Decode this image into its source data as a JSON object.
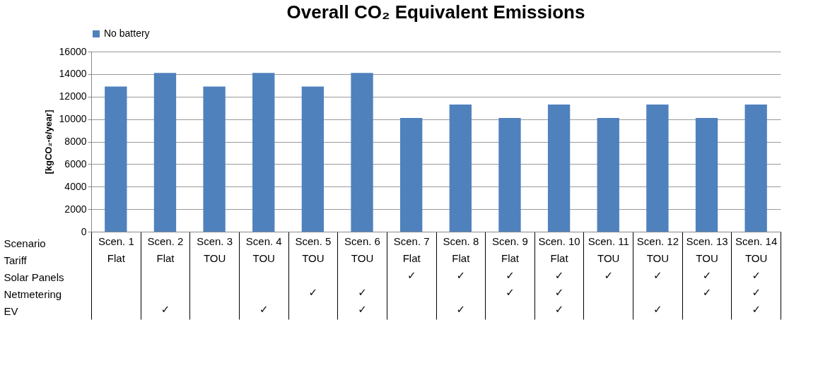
{
  "chart_data": {
    "type": "bar",
    "title": "Overall CO₂ Equivalent Emissions",
    "xlabel": "Scenario\nTariff\nSolar Panels\nNetmetering\nEV",
    "ylabel": "[kgCO₂-e/year]",
    "categories": [
      "Scen. 1\nFlat\n\n\n",
      "Scen. 2\nFlat\n\n\n✓",
      "Scen. 3\nTOU\n\n\n",
      "Scen. 4\nTOU\n\n\n✓",
      "Scen. 5\nTOU\n\n✓\n",
      "Scen. 6\nTOU\n\n✓\n✓",
      "Scen. 7\nFlat\n✓\n\n",
      "Scen. 8\nFlat\n✓\n\n✓",
      "Scen. 9\nFlat\n✓\n✓\n",
      "Scen. 10\nFlat\n✓\n✓\n✓",
      "Scen. 11\nTOU\n✓\n\n",
      "Scen. 12\nTOU\n✓\n\n✓",
      "Scen. 13\nTOU\n✓\n✓\n",
      "Scen. 14\nTOU\n✓\n✓\n✓"
    ],
    "series": [
      {
        "name": "No battery",
        "color": "#4f81bd",
        "values": [
          12900,
          14100,
          12900,
          14100,
          12900,
          14100,
          10100,
          11300,
          10100,
          11300,
          10100,
          11300,
          10100,
          11300
        ]
      }
    ],
    "ylim": [
      0,
      16000
    ],
    "yticks": [
      0,
      2000,
      4000,
      6000,
      8000,
      10000,
      12000,
      14000,
      16000
    ],
    "grid": "y",
    "legend": "top"
  }
}
